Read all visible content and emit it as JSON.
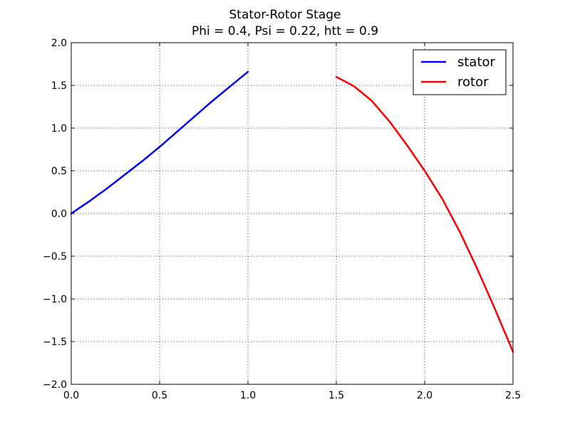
{
  "chart_data": {
    "type": "line",
    "title": "Stator-Rotor Stage",
    "subtitle": "Phi = 0.4, Psi = 0.22, htt = 0.9",
    "xlabel": "",
    "ylabel": "",
    "xlim": [
      0.0,
      2.5
    ],
    "ylim": [
      -2.0,
      2.0
    ],
    "x_ticks": [
      "0.0",
      "0.5",
      "1.0",
      "1.5",
      "2.0",
      "2.5"
    ],
    "y_ticks": [
      "2.0",
      "1.5",
      "1.0",
      "0.5",
      "0.0",
      "−0.5",
      "−1.0",
      "−1.5",
      "−2.0"
    ],
    "grid": true,
    "legend_position": "top-right",
    "series": [
      {
        "name": "stator",
        "color": "#0000ff",
        "x": [
          0.0,
          0.1,
          0.2,
          0.3,
          0.4,
          0.5,
          0.6,
          0.7,
          0.8,
          0.9,
          1.0
        ],
        "y": [
          0.0,
          0.14,
          0.29,
          0.45,
          0.61,
          0.78,
          0.96,
          1.14,
          1.32,
          1.49,
          1.66
        ]
      },
      {
        "name": "rotor",
        "color": "#ff0000",
        "x": [
          1.5,
          1.6,
          1.7,
          1.8,
          1.9,
          2.0,
          2.1,
          2.2,
          2.3,
          2.4,
          2.5
        ],
        "y": [
          1.6,
          1.49,
          1.32,
          1.08,
          0.8,
          0.5,
          0.17,
          -0.22,
          -0.66,
          -1.13,
          -1.62
        ]
      }
    ]
  }
}
